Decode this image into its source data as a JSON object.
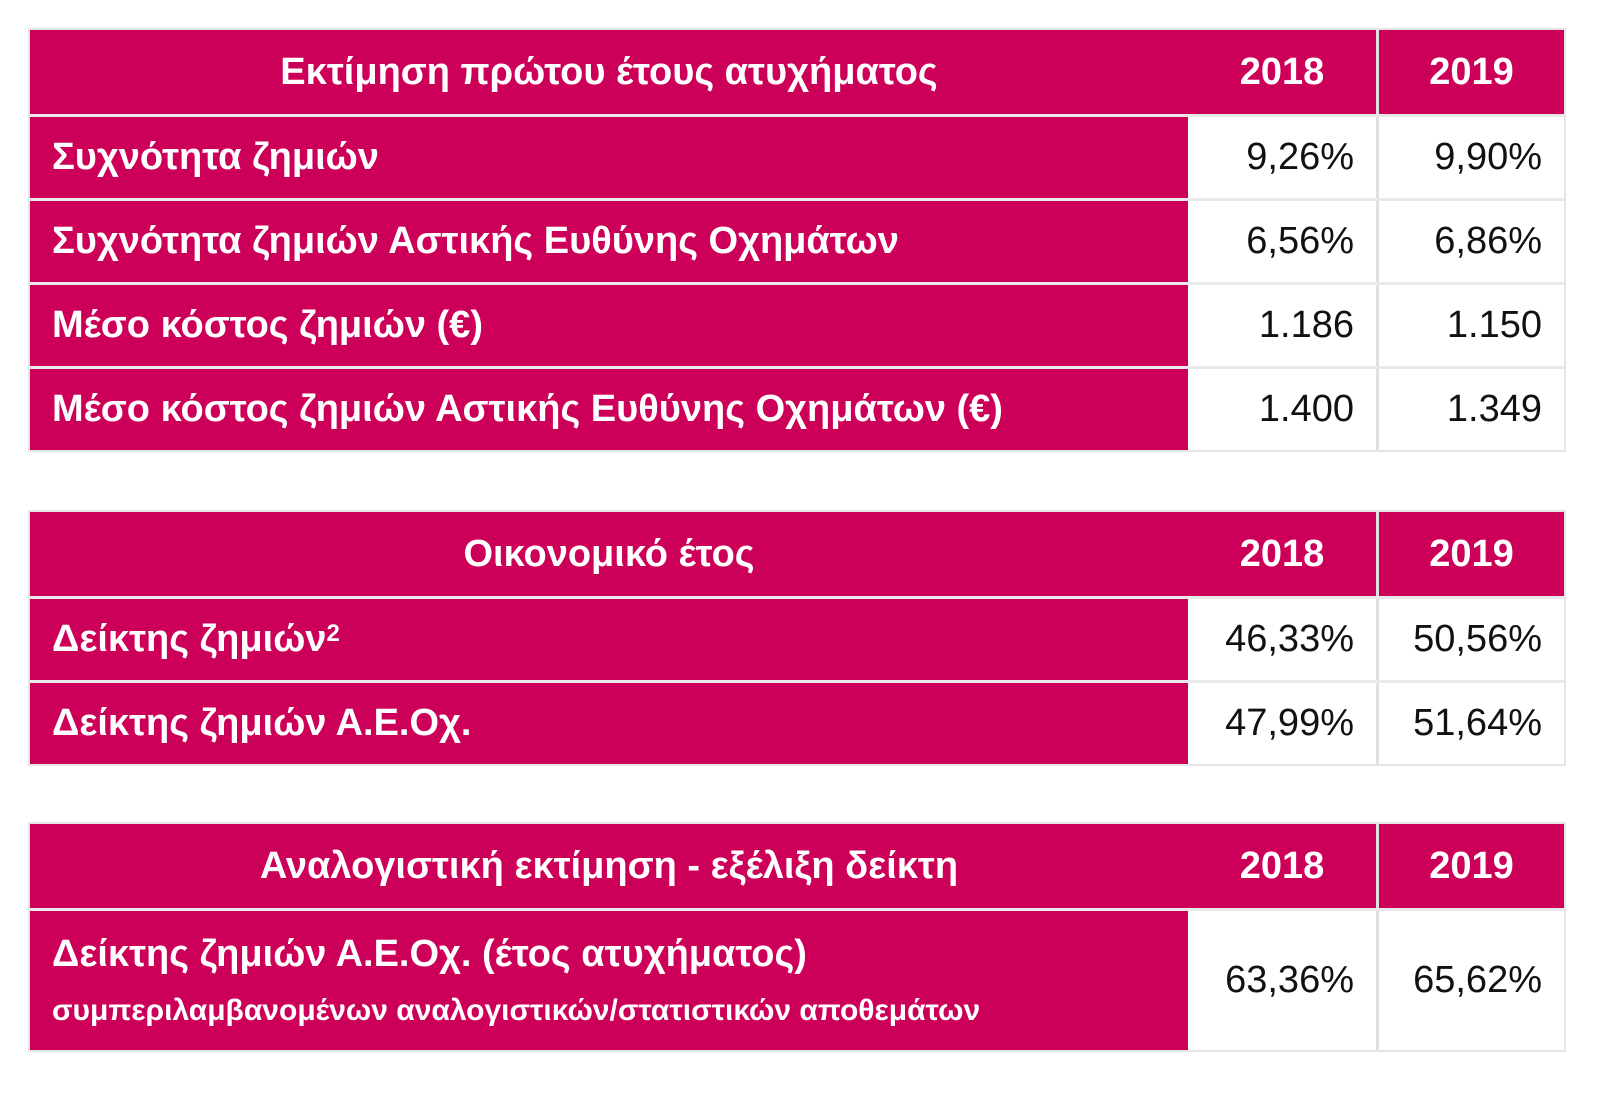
{
  "tables": [
    {
      "header": {
        "label": "Εκτίμηση πρώτου έτους ατυχήματος",
        "year1": "2018",
        "year2": "2019"
      },
      "rows": [
        {
          "label": "Συχνότητα ζημιών",
          "v1": "9,26%",
          "v2": "9,90%"
        },
        {
          "label": "Συχνότητα ζημιών Αστικής Ευθύνης Οχημάτων",
          "v1": "6,56%",
          "v2": "6,86%"
        },
        {
          "label": "Μέσο κόστος ζημιών (€)",
          "v1": "1.186",
          "v2": "1.150"
        },
        {
          "label": "Μέσο κόστος ζημιών Αστικής Ευθύνης Οχημάτων (€)",
          "v1": "1.400",
          "v2": "1.349"
        }
      ]
    },
    {
      "header": {
        "label": "Οικονομικό έτος",
        "year1": "2018",
        "year2": "2019"
      },
      "rows": [
        {
          "label": "Δείκτης ζημιών",
          "sup": "2",
          "v1": "46,33%",
          "v2": "50,56%"
        },
        {
          "label": "Δείκτης ζημιών Α.Ε.Οχ.",
          "v1": "47,99%",
          "v2": "51,64%"
        }
      ]
    },
    {
      "header": {
        "label": "Αναλογιστική εκτίμηση -  εξέλιξη δείκτη",
        "year1": "2018",
        "year2": "2019"
      },
      "rows": [
        {
          "label": "Δείκτης ζημιών Α.Ε.Οχ. (έτος ατυχήματος)",
          "sublabel": "συμπεριλαμβανομένων αναλογιστικών/στατιστικών αποθεμάτων",
          "v1": "63,36%",
          "v2": "65,62%"
        }
      ]
    }
  ],
  "colors": {
    "header_bg": "#cc0058",
    "value_bg": "#ffffff"
  }
}
